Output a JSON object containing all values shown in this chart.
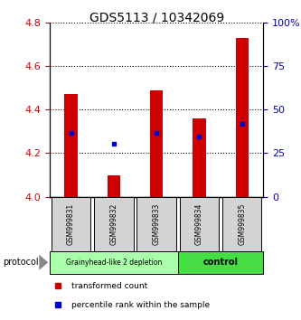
{
  "title": "GDS5113 / 10342069",
  "samples": [
    "GSM999831",
    "GSM999832",
    "GSM999833",
    "GSM999834",
    "GSM999835"
  ],
  "bar_values": [
    4.47,
    4.1,
    4.49,
    4.36,
    4.73
  ],
  "bar_base": 4.0,
  "percentile_values": [
    4.295,
    4.245,
    4.295,
    4.275,
    4.335
  ],
  "ylim": [
    4.0,
    4.8
  ],
  "yticks_left": [
    4.0,
    4.2,
    4.4,
    4.6,
    4.8
  ],
  "yticks_right": [
    0,
    25,
    50,
    75,
    100
  ],
  "bar_color": "#cc0000",
  "percentile_color": "#0000cc",
  "group1_samples": [
    0,
    1,
    2
  ],
  "group2_samples": [
    3,
    4
  ],
  "group1_label": "Grainyhead-like 2 depletion",
  "group2_label": "control",
  "group1_color": "#aaffaa",
  "group2_color": "#44dd44",
  "protocol_label": "protocol",
  "legend_bar_label": "transformed count",
  "legend_pct_label": "percentile rank within the sample",
  "xlabel_color": "#cc0000",
  "ylabel_right_color": "#0000cc",
  "title_fontsize": 10,
  "tick_fontsize": 8,
  "sample_box_color": "#d3d3d3",
  "bar_width": 0.3
}
